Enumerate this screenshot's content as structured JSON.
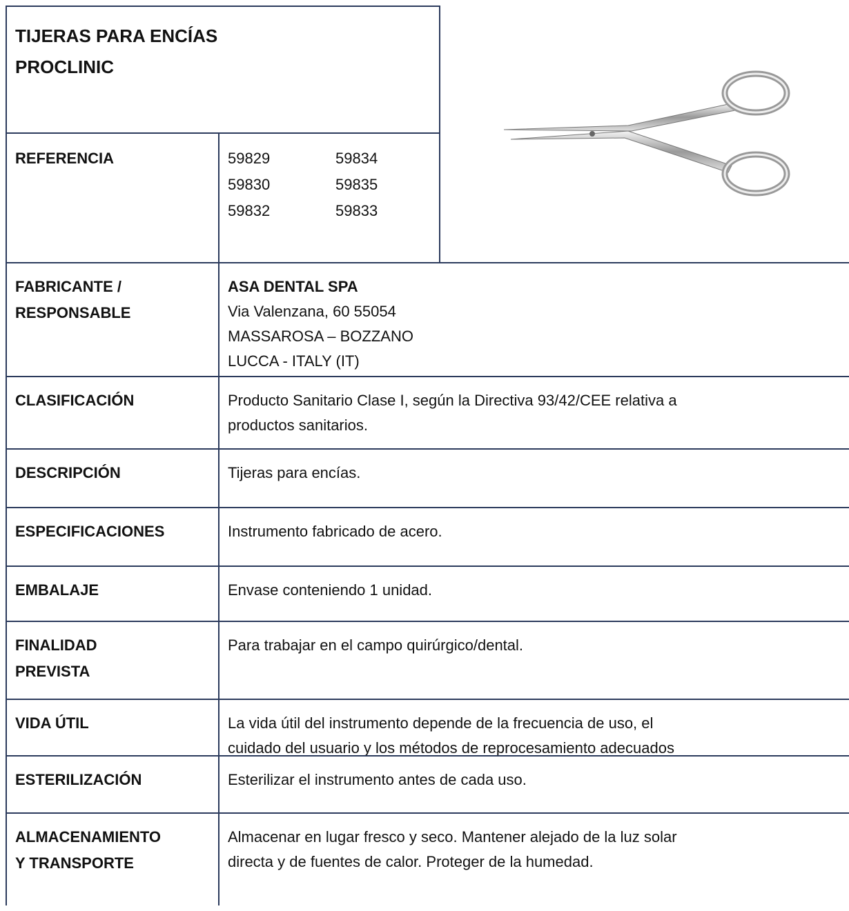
{
  "title": [
    "TIJERAS PARA ENCÍAS",
    "PROCLINIC"
  ],
  "reference": {
    "label": "REFERENCIA",
    "codes": [
      [
        "59829",
        "59834"
      ],
      [
        "59830",
        "59835"
      ],
      [
        "59832",
        "59833"
      ]
    ]
  },
  "rows": [
    {
      "label": [
        "FABRICANTE /",
        "RESPONSABLE"
      ],
      "value": [
        "ASA DENTAL SPA",
        "Via Valenzana, 60 55054",
        "MASSAROSA – BOZZANO",
        "LUCCA - ITALY (IT)"
      ]
    },
    {
      "label": [
        "CLASIFICACIÓN"
      ],
      "value": [
        "Producto Sanitario Clase I, según la Directiva 93/42/CEE relativa a",
        "productos sanitarios."
      ]
    },
    {
      "label": [
        "DESCRIPCIÓN"
      ],
      "value": [
        "Tijeras para encías."
      ]
    },
    {
      "label": [
        "ESPECIFICACIONES"
      ],
      "value": [
        "Instrumento fabricado de acero."
      ]
    },
    {
      "label": [
        "EMBALAJE"
      ],
      "value": [
        "Envase conteniendo 1 unidad."
      ]
    },
    {
      "label": [
        "FINALIDAD",
        "PREVISTA"
      ],
      "value": [
        "Para trabajar en el campo quirúrgico/dental."
      ]
    },
    {
      "label": [
        "VIDA ÚTIL"
      ],
      "value": [
        "La vida útil del instrumento depende de la frecuencia de uso, el",
        "cuidado del usuario y los métodos de reprocesamiento adecuados"
      ]
    },
    {
      "label": [
        "ESTERILIZACIÓN"
      ],
      "value": [
        "Esterilizar el instrumento antes de cada uso."
      ]
    },
    {
      "label": [
        "ALMACENAMIENTO",
        "Y TRANSPORTE"
      ],
      "value": [
        "Almacenar en lugar fresco y seco. Mantener alejado de la luz solar",
        "directa y de fuentes de calor. Proteger de la humedad."
      ]
    }
  ]
}
